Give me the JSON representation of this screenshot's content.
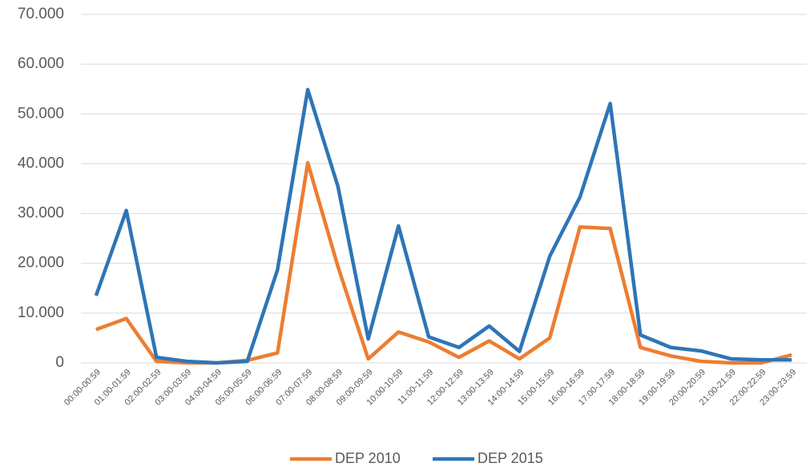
{
  "chart_data": {
    "type": "line",
    "categories": [
      "00:00-00:59",
      "01:00-01:59",
      "02:00-02:59",
      "03:00-03:59",
      "04:00-04:59",
      "05:00-05:59",
      "06:00-06:59",
      "07:00-07:59",
      "08:00-08:59",
      "09:00-09:59",
      "10:00-10:59",
      "11:00-11:59",
      "12:00-12:59",
      "13:00-13:59",
      "14:00-14:59",
      "15:00-15:59",
      "16:00-16:59",
      "17:00-17:59",
      "18:00-18:59",
      "19:00-19:59",
      "20:00-20:59",
      "21:00-21:59",
      "22:00-22:59",
      "23:00-23:59"
    ],
    "series": [
      {
        "name": "DEP 2010",
        "color": "#ed7d31",
        "values": [
          6700,
          8900,
          300,
          0,
          0,
          500,
          2000,
          40200,
          19300,
          800,
          6200,
          4200,
          1100,
          4400,
          800,
          5000,
          27300,
          27000,
          3100,
          1400,
          300,
          0,
          0,
          1600
        ]
      },
      {
        "name": "DEP 2015",
        "color": "#2e75b6",
        "values": [
          13500,
          30600,
          1100,
          300,
          0,
          300,
          18700,
          54900,
          35400,
          4800,
          27500,
          5200,
          3100,
          7400,
          2300,
          21400,
          33300,
          52100,
          5600,
          3100,
          2400,
          800,
          600,
          600
        ]
      }
    ],
    "ylim": [
      0,
      70000
    ],
    "yticks": [
      0,
      {
        "value": 10000,
        "label": "10.000"
      },
      {
        "value": 20000,
        "label": "20.000"
      },
      {
        "value": 30000,
        "label": "30.000"
      },
      {
        "value": 40000,
        "label": "40.000"
      },
      {
        "value": 50000,
        "label": "50.000"
      },
      {
        "value": 60000,
        "label": "60.000"
      },
      {
        "value": 70000,
        "label": "70.000"
      }
    ],
    "grid": true,
    "legend": "bottom"
  }
}
